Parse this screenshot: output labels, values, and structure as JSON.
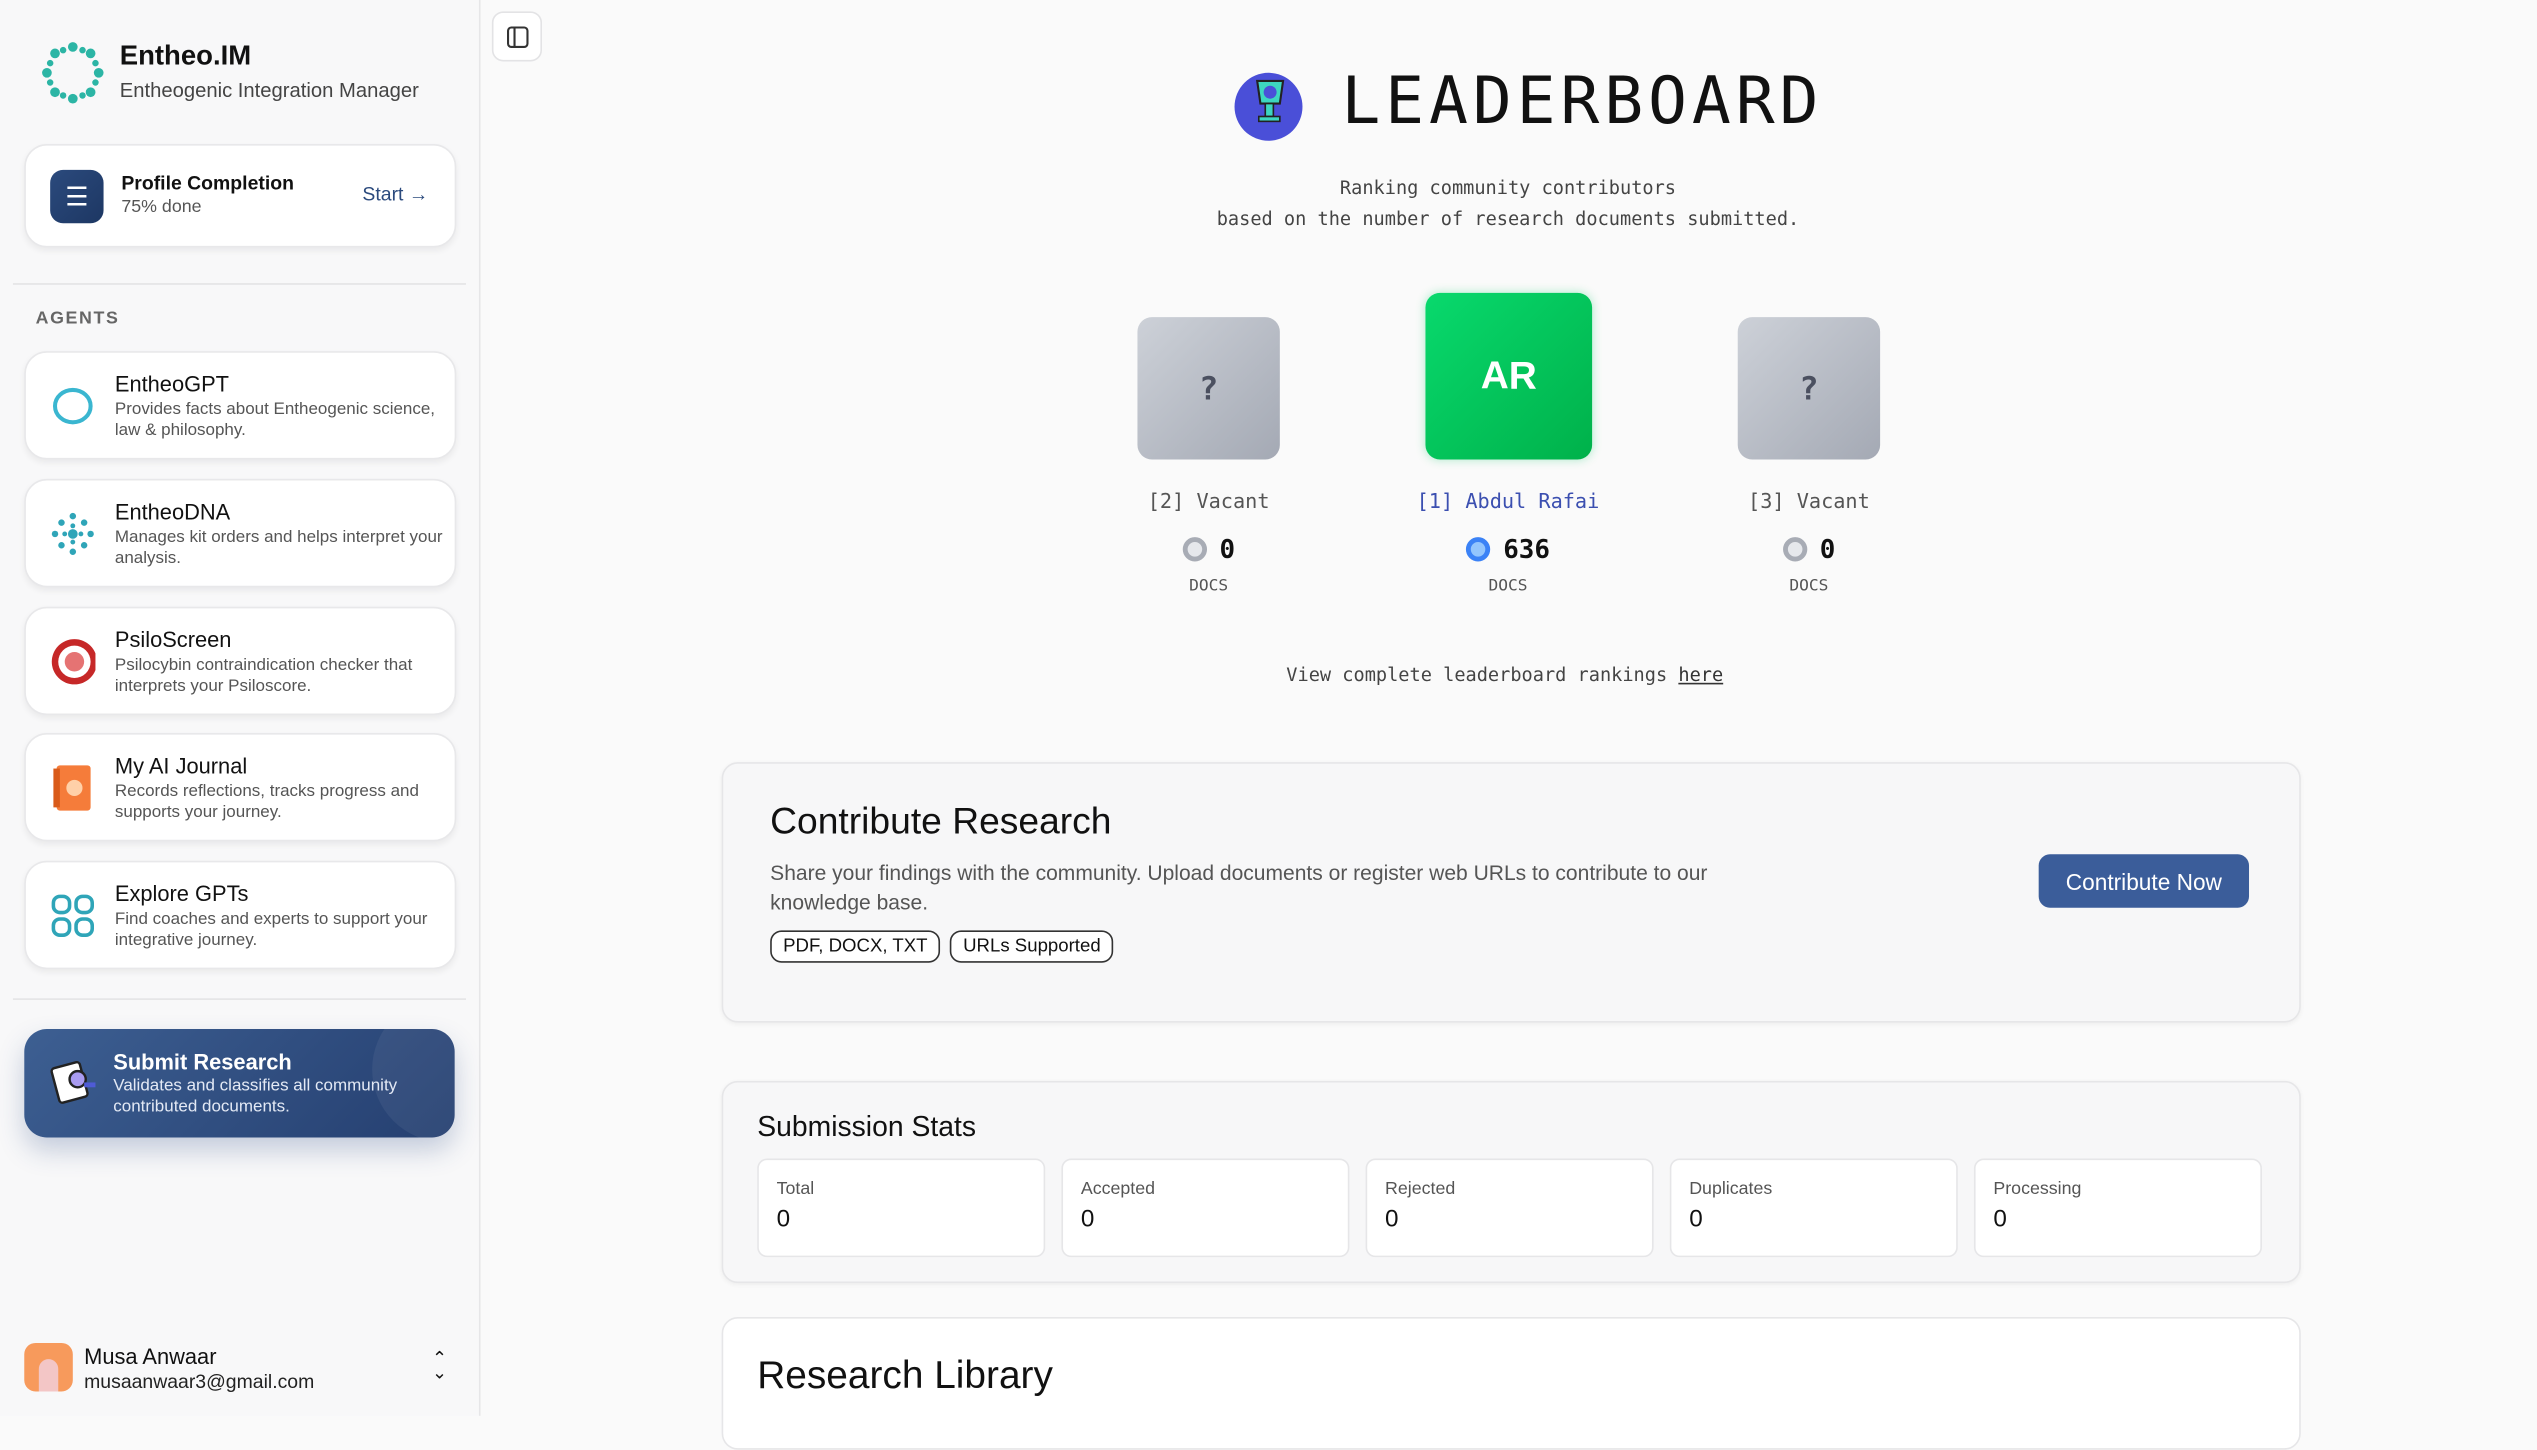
{
  "brand": {
    "title": "Entheo.IM",
    "subtitle": "Entheogenic Integration Manager"
  },
  "profile": {
    "title": "Profile Completion",
    "progress": "75% done",
    "progress_value": 75,
    "action": "Start →"
  },
  "agents_label": "AGENTS",
  "agents": [
    {
      "name": "EntheoGPT",
      "desc": "Provides facts about Entheogenic science, law & philosophy.",
      "icon": "ring-icon"
    },
    {
      "name": "EntheoDNA",
      "desc": "Manages kit orders and helps interpret your analysis.",
      "icon": "dna-dots-icon"
    },
    {
      "name": "PsiloScreen",
      "desc": "Psilocybin contraindication checker that interprets your Psiloscore.",
      "icon": "screen-badge-icon"
    },
    {
      "name": "My AI Journal",
      "desc": "Records reflections, tracks progress and supports your journey.",
      "icon": "journal-icon"
    },
    {
      "name": "Explore GPTs",
      "desc": "Find coaches and experts to support your integrative journey.",
      "icon": "grid-icon"
    }
  ],
  "submit": {
    "title": "Submit Research",
    "desc": "Validates and classifies all community contributed documents."
  },
  "user": {
    "name": "Musa Anwaar",
    "email": "musaanwaar3@gmail.com"
  },
  "leaderboard": {
    "title": "LEADERBOARD",
    "subtitle1": "Ranking community contributors",
    "subtitle2": "based on the number of research documents submitted.",
    "podium": [
      {
        "initials": "?",
        "label": "[2] Vacant",
        "count": "0",
        "unit": "DOCS"
      },
      {
        "initials": "AR",
        "label": "[1] Abdul Rafai",
        "count": "636",
        "unit": "DOCS"
      },
      {
        "initials": "?",
        "label": "[3] Vacant",
        "count": "0",
        "unit": "DOCS"
      }
    ],
    "view_text": "View complete leaderboard rankings ",
    "view_link": "here"
  },
  "contribute": {
    "title": "Contribute Research",
    "desc": "Share your findings with the community. Upload documents or register web URLs to contribute to our knowledge base.",
    "tags": [
      "PDF, DOCX, TXT",
      "URLs Supported"
    ],
    "button": "Contribute Now"
  },
  "stats": {
    "title": "Submission Stats",
    "items": [
      {
        "label": "Total",
        "value": "0"
      },
      {
        "label": "Accepted",
        "value": "0"
      },
      {
        "label": "Rejected",
        "value": "0"
      },
      {
        "label": "Duplicates",
        "value": "0"
      },
      {
        "label": "Processing",
        "value": "0"
      }
    ]
  },
  "library": {
    "title": "Research Library"
  },
  "colors": {
    "primary": "#3b5d9a",
    "first_place": "#00c853",
    "link_blue": "#3b4fb0"
  }
}
